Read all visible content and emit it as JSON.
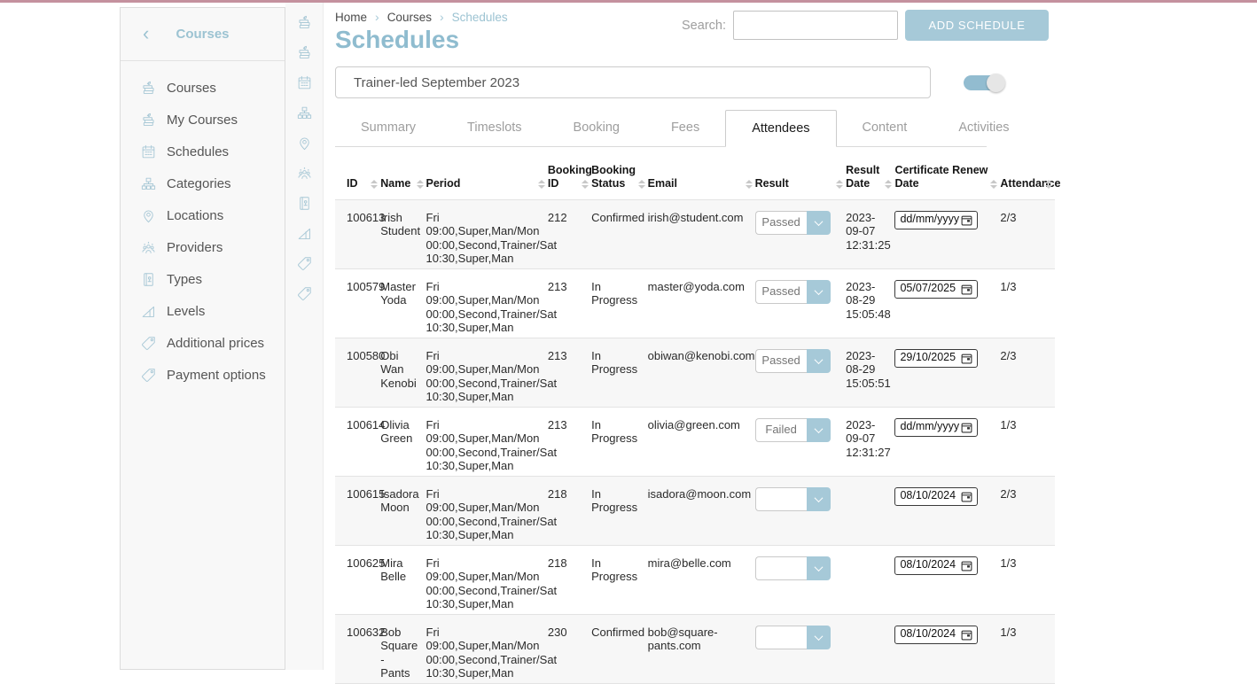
{
  "colors": {
    "accent_blue": "#a6c9d8",
    "title_blue": "#8fbccf",
    "link_blue": "#9cc3d2",
    "topbar_pink": "#c4919e"
  },
  "sidebar": {
    "back_icon": "‹",
    "title": "Courses",
    "items": [
      {
        "label": "Courses",
        "icon": "courses"
      },
      {
        "label": "My Courses",
        "icon": "courses"
      },
      {
        "label": "Schedules",
        "icon": "calendar"
      },
      {
        "label": "Categories",
        "icon": "sitemap"
      },
      {
        "label": "Locations",
        "icon": "pin"
      },
      {
        "label": "Providers",
        "icon": "group"
      },
      {
        "label": "Types",
        "icon": "types"
      },
      {
        "label": "Levels",
        "icon": "levels"
      },
      {
        "label": "Additional prices",
        "icon": "tag"
      },
      {
        "label": "Payment options",
        "icon": "tag"
      }
    ]
  },
  "breadcrumb": [
    "Home",
    "Courses",
    "Schedules"
  ],
  "page_title": "Schedules",
  "search": {
    "label": "Search:",
    "value": ""
  },
  "add_schedule_button": "ADD SCHEDULE",
  "schedule_name_input": {
    "value": "Trainer-led September 2023"
  },
  "toggle": {
    "state": "on"
  },
  "tabs": [
    {
      "label": "Summary",
      "active": false
    },
    {
      "label": "Timeslots",
      "active": false
    },
    {
      "label": "Booking",
      "active": false
    },
    {
      "label": "Fees",
      "active": false
    },
    {
      "label": "Attendees",
      "active": true
    },
    {
      "label": "Content",
      "active": false
    },
    {
      "label": "Activities",
      "active": false
    }
  ],
  "table": {
    "columns": [
      "ID",
      "Name",
      "Period",
      "Booking ID",
      "Booking Status",
      "Email",
      "Result",
      "Result Date",
      "Certificate Renew Date",
      "Attendance"
    ],
    "rows": [
      {
        "id": "100613",
        "name": "Irish Student",
        "period": "Fri 09:00,Super,Man/Mon 00:00,Second,Trainer/Sat 10:30,Super,Man",
        "booking_id": "212",
        "booking_status": "Confirmed",
        "email": "irish@student.com",
        "result": "Passed",
        "result_date": "2023-09-07 12:31:25",
        "certificate_renew_date": "dd/mm/yyyy",
        "attendance": "2/3"
      },
      {
        "id": "100579",
        "name": "Master Yoda",
        "period": "Fri 09:00,Super,Man/Mon 00:00,Second,Trainer/Sat 10:30,Super,Man",
        "booking_id": "213",
        "booking_status": "In Progress",
        "email": "master@yoda.com",
        "result": "Passed",
        "result_date": "2023-08-29 15:05:48",
        "certificate_renew_date": "05/07/2025",
        "attendance": "1/3"
      },
      {
        "id": "100580",
        "name": "Obi Wan Kenobi",
        "period": "Fri 09:00,Super,Man/Mon 00:00,Second,Trainer/Sat 10:30,Super,Man",
        "booking_id": "213",
        "booking_status": "In Progress",
        "email": "obiwan@kenobi.com",
        "result": "Passed",
        "result_date": "2023-08-29 15:05:51",
        "certificate_renew_date": "29/10/2025",
        "attendance": "2/3"
      },
      {
        "id": "100614",
        "name": "Olivia Green",
        "period": "Fri 09:00,Super,Man/Mon 00:00,Second,Trainer/Sat 10:30,Super,Man",
        "booking_id": "213",
        "booking_status": "In Progress",
        "email": "olivia@green.com",
        "result": "Failed",
        "result_date": "2023-09-07 12:31:27",
        "certificate_renew_date": "dd/mm/yyyy",
        "attendance": "1/3"
      },
      {
        "id": "100615",
        "name": "Isadora Moon",
        "period": "Fri 09:00,Super,Man/Mon 00:00,Second,Trainer/Sat 10:30,Super,Man",
        "booking_id": "218",
        "booking_status": "In Progress",
        "email": "isadora@moon.com",
        "result": "",
        "result_date": "",
        "certificate_renew_date": "08/10/2024",
        "attendance": "2/3"
      },
      {
        "id": "100625",
        "name": "Mira Belle",
        "period": "Fri 09:00,Super,Man/Mon 00:00,Second,Trainer/Sat 10:30,Super,Man",
        "booking_id": "218",
        "booking_status": "In Progress",
        "email": "mira@belle.com",
        "result": "",
        "result_date": "",
        "certificate_renew_date": "08/10/2024",
        "attendance": "1/3"
      },
      {
        "id": "100632",
        "name": "Bob Square - Pants",
        "period": "Fri 09:00,Super,Man/Mon 00:00,Second,Trainer/Sat 10:30,Super,Man",
        "booking_id": "230",
        "booking_status": "Confirmed",
        "email": "bob@square-pants.com",
        "result": "",
        "result_date": "",
        "certificate_renew_date": "08/10/2024",
        "attendance": "1/3"
      }
    ]
  }
}
